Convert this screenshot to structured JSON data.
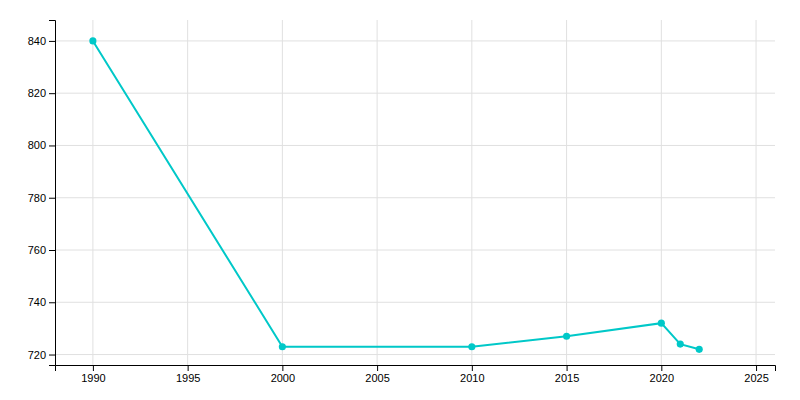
{
  "chart_data": {
    "type": "line",
    "x": [
      1990,
      2000,
      2010,
      2015,
      2020,
      2021,
      2022
    ],
    "values": [
      840,
      723,
      723,
      727,
      732,
      724,
      722
    ],
    "color": "#00C8C8",
    "marker": "circle",
    "xlim": [
      1988,
      2026
    ],
    "ylim": [
      716,
      848
    ],
    "xticks": [
      1990,
      1995,
      2000,
      2005,
      2010,
      2015,
      2020,
      2025
    ],
    "yticks": [
      720,
      740,
      760,
      780,
      800,
      820,
      840
    ],
    "grid": true
  }
}
